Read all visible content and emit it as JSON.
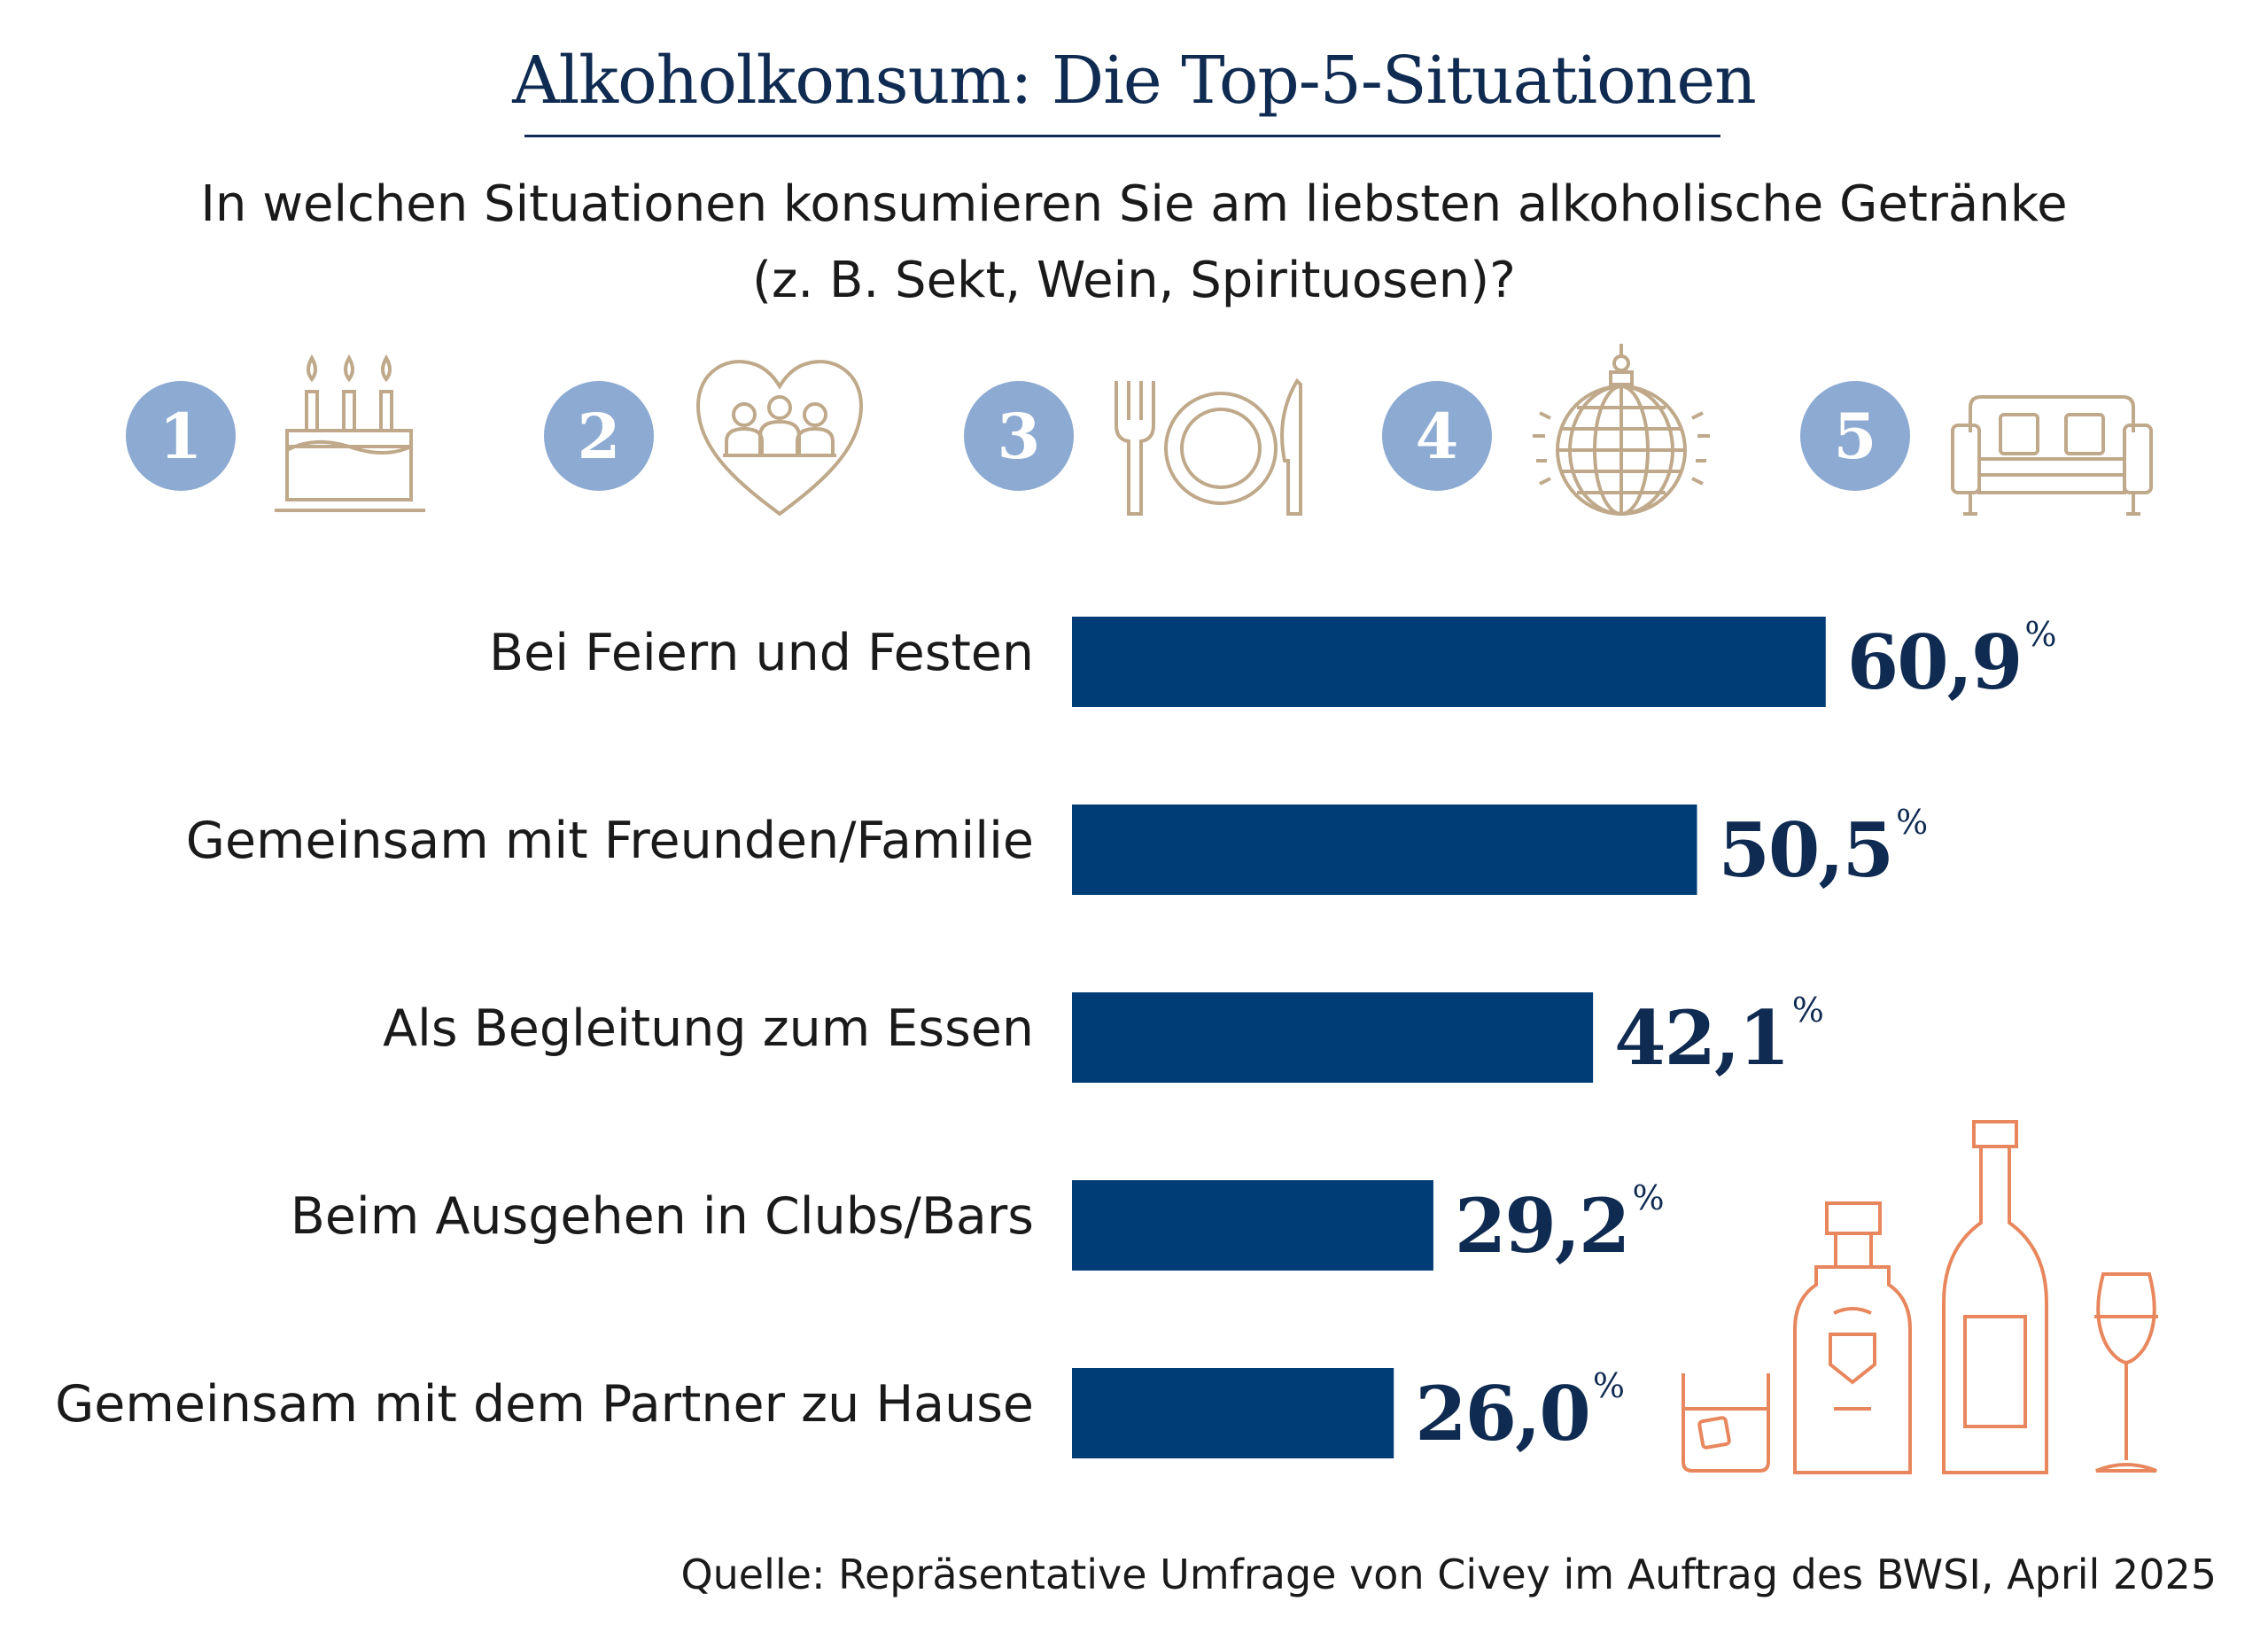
{
  "title": "Alkoholkonsum: Die Top-5-Situationen",
  "question_line1": "In welchen Situationen konsumieren Sie am liebsten alkoholische Getränke",
  "question_line2": "(z. B. Sekt, Wein, Spirituosen)?",
  "ranks": [
    {
      "number": "1",
      "icon": "birthday-cake-icon"
    },
    {
      "number": "2",
      "icon": "heart-people-icon"
    },
    {
      "number": "3",
      "icon": "plate-cutlery-icon"
    },
    {
      "number": "4",
      "icon": "disco-ball-icon"
    },
    {
      "number": "5",
      "icon": "sofa-icon"
    }
  ],
  "colors": {
    "bar": "#003d76",
    "title": "#0f2b52",
    "rank_circle": "#8caad2",
    "icon_beige": "#bfa98a",
    "icon_orange": "#e8875d"
  },
  "percent_sign": "%",
  "source": "Quelle: Repräsentative Umfrage von Civey im Auftrag des BWSI, April 2025",
  "decor_icons": [
    "whisky-glass-icon",
    "liquor-bottle-icon",
    "wine-bottle-icon",
    "wine-glass-icon"
  ],
  "chart_data": {
    "type": "bar",
    "orientation": "horizontal",
    "categories": [
      "Bei Feiern und Festen",
      "Gemeinsam mit Freunden/Familie",
      "Als Begleitung zum Essen",
      "Beim Ausgehen in Clubs/Bars",
      "Gemeinsam mit dem Partner zu Hause"
    ],
    "values": [
      60.9,
      50.5,
      42.1,
      29.2,
      26.0
    ],
    "value_labels": [
      "60,9",
      "50,5",
      "42,1",
      "29,2",
      "26,0"
    ],
    "unit": "%",
    "xlim": [
      0,
      100
    ],
    "grid": false,
    "legend": "none"
  }
}
